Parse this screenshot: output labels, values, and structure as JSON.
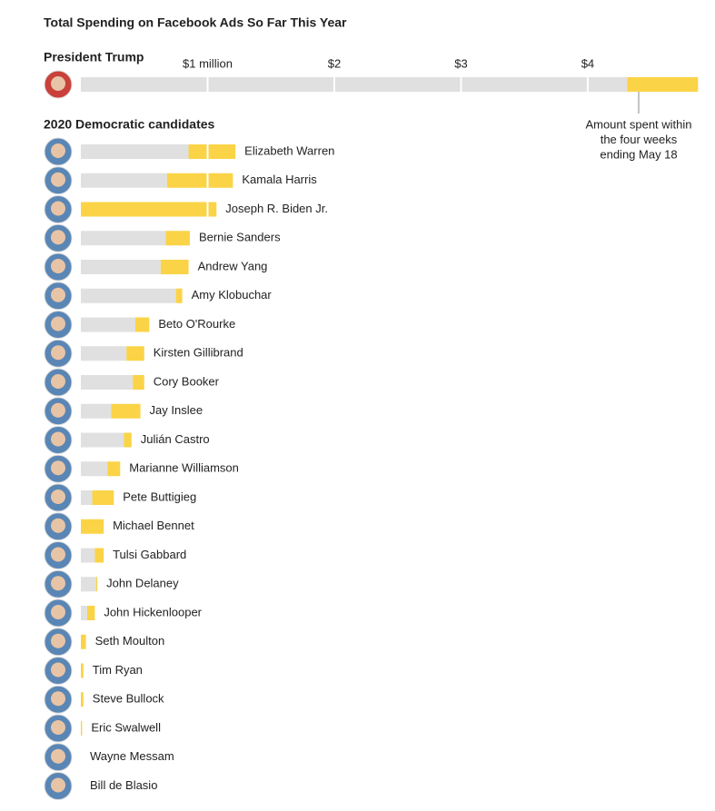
{
  "chart_data": {
    "type": "bar",
    "title": "Total Spending on Facebook Ads So Far This Year",
    "xlim": [
      0,
      4.875
    ],
    "xticks": [
      {
        "value": 1,
        "label": "$1 million"
      },
      {
        "value": 2,
        "label": "$2"
      },
      {
        "value": 3,
        "label": "$3"
      },
      {
        "value": 4,
        "label": "$4"
      }
    ],
    "annotation": [
      "Amount spent within",
      "the four weeks",
      "ending May 18"
    ],
    "sections": [
      {
        "title": "President Trump",
        "categories": [
          null
        ],
        "series": [
          {
            "color": "#e0e0e0",
            "values": [
              4.31
            ]
          },
          {
            "color": "#fbd346",
            "values": [
              0.56
            ]
          }
        ]
      },
      {
        "title": "2020 Democratic candidates",
        "categories": [
          "Elizabeth Warren",
          "Kamala Harris",
          "Joseph R. Biden Jr.",
          "Bernie Sanders",
          "Andrew Yang",
          "Amy Klobuchar",
          "Beto O'Rourke",
          "Kirsten Gillibrand",
          "Cory Booker",
          "Jay Inslee",
          "Julián Castro",
          "Marianne Williamson",
          "Pete Buttigieg",
          "Michael Bennet",
          "Tulsi Gabbard",
          "John Delaney",
          "John Hickenlooper",
          "Seth Moulton",
          "Tim Ryan",
          "Steve Bullock",
          "Eric Swalwell",
          "Wayne Messam",
          "Bill de Blasio"
        ],
        "series": [
          {
            "color": "#e0e0e0",
            "values": [
              0.85,
              0.68,
              0,
              0.67,
              0.63,
              0.75,
              0.43,
              0.36,
              0.41,
              0.24,
              0.34,
              0.21,
              0.09,
              0,
              0.11,
              0.12,
              0.05,
              0,
              0,
              0,
              0,
              0,
              0
            ]
          },
          {
            "color": "#fbd346",
            "values": [
              0.37,
              0.52,
              1.07,
              0.19,
              0.22,
              0.05,
              0.11,
              0.14,
              0.09,
              0.23,
              0.06,
              0.1,
              0.17,
              0.18,
              0.07,
              0.01,
              0.06,
              0.04,
              0.02,
              0.02,
              0.01,
              0,
              0
            ]
          }
        ]
      }
    ]
  }
}
